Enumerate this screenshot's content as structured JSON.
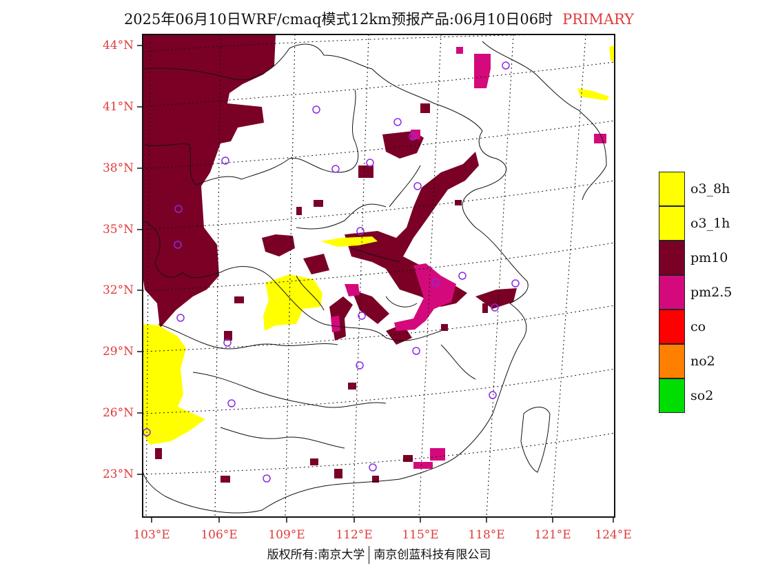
{
  "title": "2025年06月10日WRF/cmaq模式12km预报产品:06月10日06时",
  "tag": "PRIMARY",
  "lat_labels": [
    "44°N",
    "41°N",
    "38°N",
    "35°N",
    "32°N",
    "29°N",
    "26°N",
    "23°N"
  ],
  "lon_labels": [
    "103°E",
    "106°E",
    "109°E",
    "112°E",
    "115°E",
    "118°E",
    "121°E",
    "124°E"
  ],
  "legend": [
    {
      "label": "o3_8h",
      "color": "#ffff00"
    },
    {
      "label": "o3_1h",
      "color": "#ffff00"
    },
    {
      "label": "pm10",
      "color": "#7a0026"
    },
    {
      "label": "pm2.5",
      "color": "#d40a7c"
    },
    {
      "label": "co",
      "color": "#ff0000"
    },
    {
      "label": "no2",
      "color": "#ff7f00"
    },
    {
      "label": "so2",
      "color": "#00dd00"
    }
  ],
  "footer": {
    "left": "版权所有:南京大学",
    "right": "南京创蓝科技有限公司"
  }
}
